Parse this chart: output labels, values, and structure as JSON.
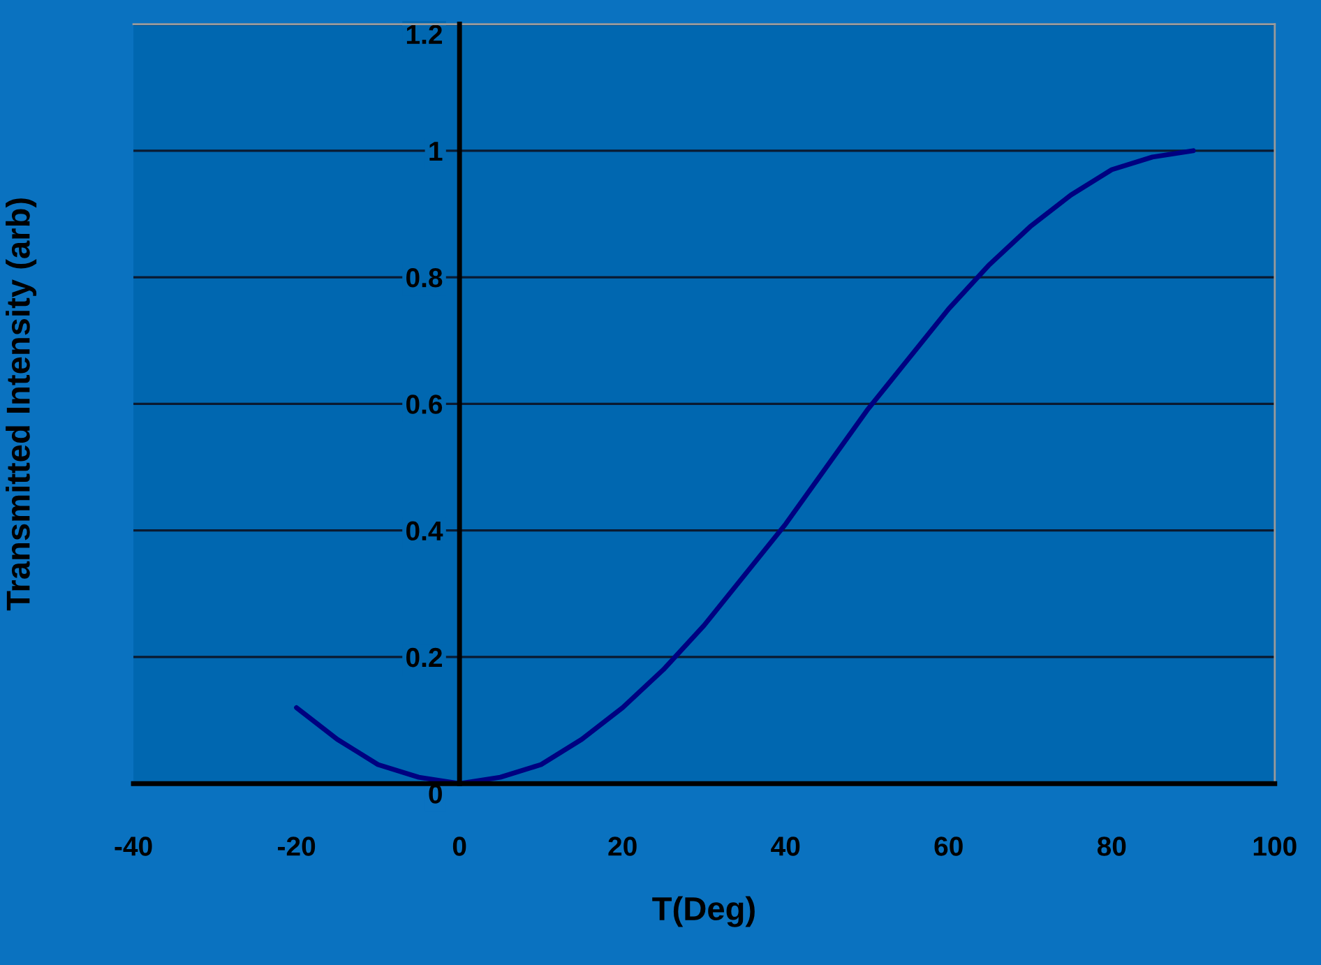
{
  "chart_data": {
    "type": "line",
    "xlabel": "T(Deg)",
    "ylabel": "Transmitted Intensity (arb)",
    "x": [
      -20,
      -15,
      -10,
      -5,
      0,
      5,
      10,
      15,
      20,
      25,
      30,
      35,
      40,
      45,
      50,
      55,
      60,
      65,
      70,
      75,
      80,
      85,
      90
    ],
    "series": [
      {
        "color": "#000080",
        "values": [
          0.12,
          0.07,
          0.03,
          0.01,
          0,
          0.01,
          0.03,
          0.07,
          0.12,
          0.18,
          0.25,
          0.33,
          0.41,
          0.5,
          0.59,
          0.67,
          0.75,
          0.82,
          0.88,
          0.93,
          0.97,
          0.99,
          1.0
        ]
      }
    ],
    "xlim": [
      -40,
      100
    ],
    "xticks": [
      -40,
      -20,
      0,
      20,
      40,
      60,
      80,
      100
    ],
    "ylim": [
      0,
      1.2
    ],
    "yticks": [
      0,
      0.2,
      0.4,
      0.6,
      0.8,
      1,
      1.2
    ],
    "grid": "y",
    "legend": false,
    "marker": "none",
    "line_style": "solid"
  }
}
